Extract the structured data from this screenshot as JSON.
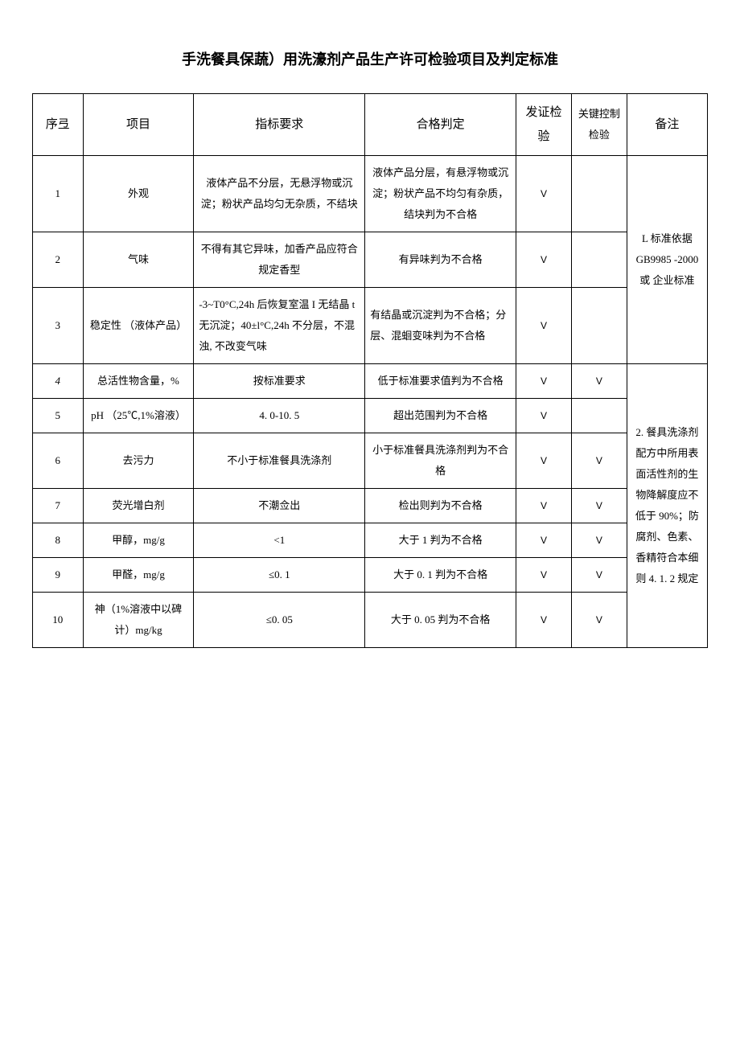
{
  "title": "手洗餐具保蔬）用洗濠剂产品生产许可检验项目及判定标准",
  "headers": {
    "seq": "序弖",
    "item": "项目",
    "req": "指标要求",
    "judge": "合格判定",
    "cert": "发证检验",
    "key": "关键控制检验",
    "note": "备注"
  },
  "checkmark": "V",
  "rows": [
    {
      "seq": "1",
      "item": "外观",
      "req": "液体产品不分层，无悬浮物或沉淀；粉状产品均匀无杂质，不结块",
      "judge": "液体产品分层，有悬浮物或沉淀；粉状产品不均匀有杂质，结块判为不合格",
      "cert": true,
      "key": false
    },
    {
      "seq": "2",
      "item": "气味",
      "req": "不得有其它异味，加香产品应符合规定香型",
      "judge": "有异味判为不合格",
      "cert": true,
      "key": false
    },
    {
      "seq": "3",
      "item": "稳定性 （液体产品）",
      "req": "-3~T0°C,24h 后恢复室温 I 无结晶 t 无沉淀；40±l°C,24h 不分层，不混浊, 不改变气味",
      "judge": "有结晶或沉淀判为不合格；分层、混蛔变味判为不合格",
      "cert": true,
      "key": false
    },
    {
      "seq": "4",
      "item": "总活性物含量，%",
      "req": "按标准要求",
      "judge": "低于标准要求值判为不合格",
      "cert": true,
      "key": true
    },
    {
      "seq": "5",
      "item": "pH （25℃,1%溶液）",
      "req": "4. 0-10. 5",
      "judge": "超出范围判为不合格",
      "cert": true,
      "key": false
    },
    {
      "seq": "6",
      "item": "去污力",
      "req": "不小于标准餐具洗涤剂",
      "judge": "小于标准餐具洗涤剂判为不合格",
      "cert": true,
      "key": true
    },
    {
      "seq": "7",
      "item": "荧光增白剂",
      "req": "不潮佥出",
      "judge": "检出则判为不合格",
      "cert": true,
      "key": true
    },
    {
      "seq": "8",
      "item": "甲醇，mg/g",
      "req": "<1",
      "judge": "大于 1 判为不合格",
      "cert": true,
      "key": true
    },
    {
      "seq": "9",
      "item": "甲醛，mg/g",
      "req": "≤0. 1",
      "judge": "大于 0. 1 判为不合格",
      "cert": true,
      "key": true
    },
    {
      "seq": "10",
      "item": "神（1%溶液中以碑计）mg/kg",
      "req": "≤0. 05",
      "judge": "大于 0. 05 判为不合格",
      "cert": true,
      "key": true
    }
  ],
  "note_top": "L 标准依据 GB9985 -2000 或 企业标准",
  "note_bottom": "2. 餐具洗涤剂配方中所用表面活性剂的生物降解度应不低于 90%；防腐剂、色素、香精符合本细则 4. 1. 2 规定"
}
